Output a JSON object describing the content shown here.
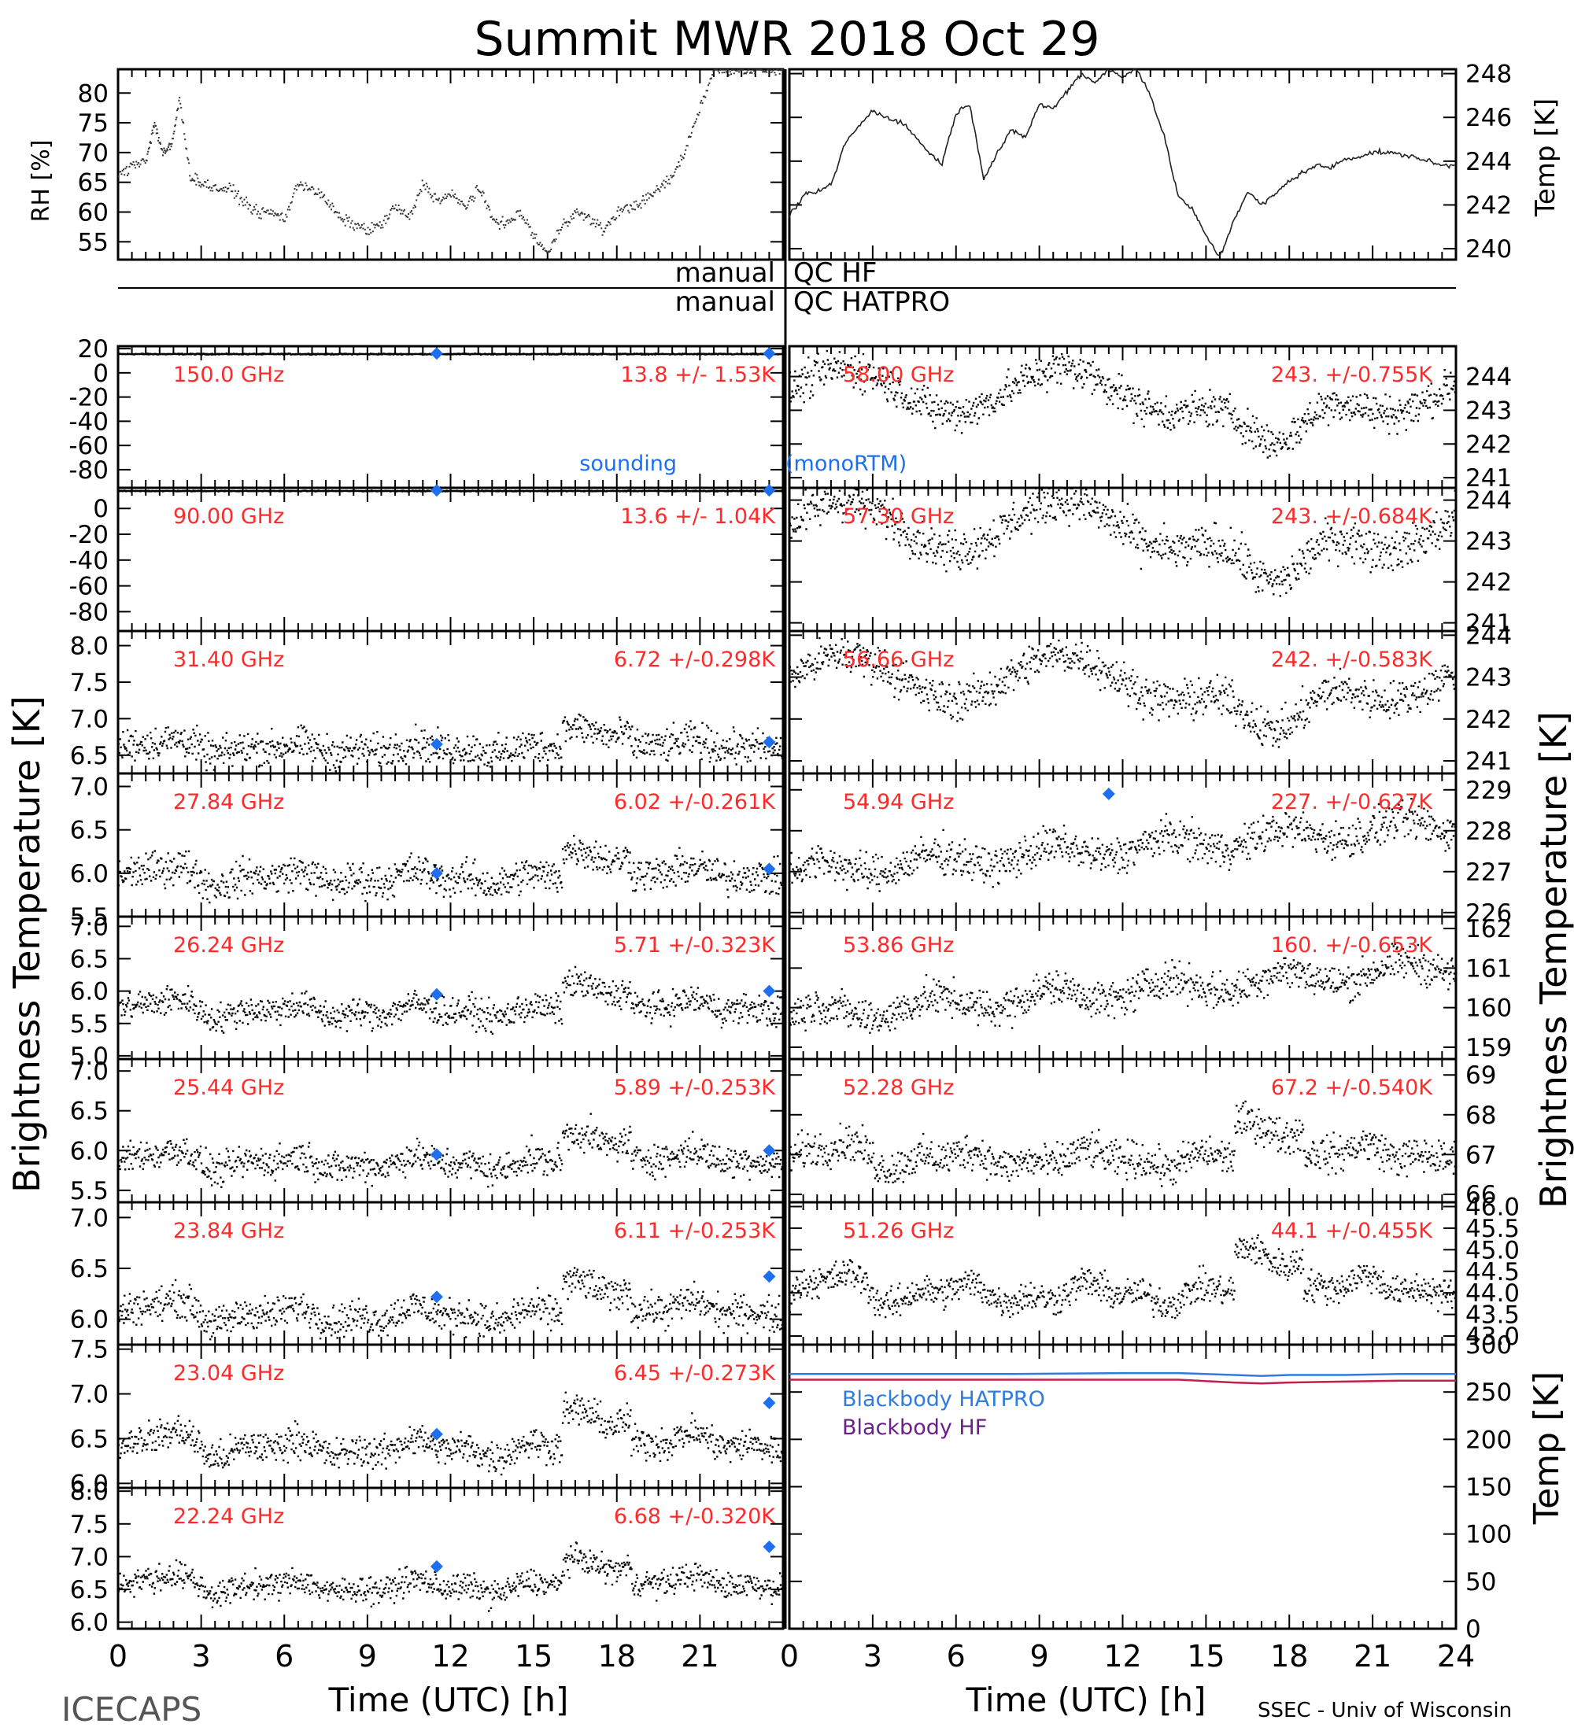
{
  "title": "Summit MWR 2018 Oct 29",
  "footer": {
    "left": "ICECAPS",
    "right": "SSEC - Univ of Wisconsin"
  },
  "axis_labels": {
    "left_brightness": "Brightness Temperature [K]",
    "right_brightness": "Brightness Temperature [K]",
    "rh": "RH [%]",
    "temp_top": "Temp [K]",
    "temp_bottom": "Temp [K]",
    "xlabel_left": "Time (UTC) [h]",
    "xlabel_right": "Time (UTC) [h]"
  },
  "qc": {
    "row1_left": "manual",
    "row1_right": "QC HF",
    "row2_left": "manual",
    "row2_right": "QC HATPRO"
  },
  "legend": {
    "sounding_left": "sounding",
    "sounding_right": "(monoRTM)",
    "bb_hatpro": "Blackbody HATPRO",
    "bb_hf": "Blackbody HF"
  },
  "colors": {
    "data": "#000000",
    "label": "#ff2a2a",
    "sounding": "#1e6ff0",
    "bb_hatpro": "#2f7be0",
    "bb_hf": "#6a1f8a",
    "bb_hf_line": "#c02050"
  },
  "chart_data": [
    {
      "id": "rh",
      "type": "scatter",
      "ylabel": "RH [%]",
      "xlim": [
        0,
        24
      ],
      "ylim": [
        52,
        84
      ],
      "yticks": [
        55,
        60,
        65,
        70,
        75,
        80
      ],
      "x": [
        0,
        0.5,
        1,
        1.3,
        1.6,
        1.9,
        2.2,
        2.6,
        3,
        3.5,
        4,
        4.5,
        5,
        5.5,
        6,
        6.5,
        7,
        7.5,
        8,
        8.5,
        9,
        9.5,
        10,
        10.5,
        11,
        11.5,
        12,
        12.5,
        13,
        13.5,
        14,
        14.5,
        15,
        15.5,
        16,
        16.5,
        17,
        17.5,
        18,
        18.5,
        19,
        19.5,
        20,
        20.5,
        21,
        21.5,
        22,
        22.5,
        23,
        23.5,
        24
      ],
      "y": [
        66,
        68,
        69,
        75,
        70,
        71,
        79,
        66,
        65,
        64,
        64,
        62,
        60,
        60,
        59,
        65,
        64,
        62,
        59,
        58,
        57,
        58,
        61,
        59,
        65,
        62,
        63,
        61,
        64,
        59,
        58,
        60,
        56,
        53,
        58,
        60,
        59,
        57,
        60,
        61,
        62,
        64,
        66,
        71,
        78,
        84,
        84,
        84,
        84,
        84,
        84
      ]
    },
    {
      "id": "temp",
      "type": "line",
      "ylabel": "Temp [K]",
      "xlim": [
        0,
        24
      ],
      "ylim": [
        239.5,
        248.2
      ],
      "yticks": [
        240,
        242,
        244,
        246,
        248
      ],
      "x": [
        0,
        0.5,
        1,
        1.5,
        2,
        2.5,
        3,
        3.5,
        4,
        4.5,
        5,
        5.5,
        6,
        6.5,
        7,
        7.5,
        8,
        8.5,
        9,
        9.5,
        10,
        10.5,
        11,
        11.5,
        12,
        12.5,
        13,
        13.5,
        14,
        14.5,
        15,
        15.5,
        16,
        16.5,
        17,
        17.5,
        18,
        18.5,
        19,
        19.5,
        20,
        20.5,
        21,
        21.5,
        22,
        22.5,
        23,
        23.5,
        24
      ],
      "y": [
        241.5,
        242.4,
        242.6,
        242.9,
        244.8,
        245.6,
        246.3,
        246.0,
        245.8,
        245.2,
        244.4,
        243.9,
        246.2,
        246.6,
        243.2,
        244.4,
        245.4,
        245.1,
        246.6,
        246.4,
        247.2,
        248.0,
        247.6,
        248.2,
        247.8,
        248.3,
        247.0,
        245.1,
        242.4,
        241.8,
        240.6,
        239.6,
        241.3,
        242.6,
        242.0,
        242.5,
        243.1,
        243.5,
        243.8,
        243.7,
        244.1,
        244.2,
        244.4,
        244.4,
        244.3,
        244.2,
        244.0,
        243.8,
        243.8
      ]
    },
    {
      "id": "150",
      "type": "scatter",
      "label": "150.0 GHz",
      "stats": "13.8 +/- 1.53K",
      "ylim": [
        -95,
        22
      ],
      "yticks": [
        20,
        0,
        -20,
        -40,
        -60,
        -80
      ],
      "mean": 16,
      "noise": 1.5,
      "sounding": [
        [
          11.5,
          16
        ],
        [
          23.5,
          16
        ]
      ]
    },
    {
      "id": "90",
      "type": "scatter",
      "label": "90.00 GHz",
      "stats": "13.6 +/- 1.04K",
      "ylim": [
        -95,
        16
      ],
      "yticks": [
        0,
        -20,
        -40,
        -60,
        -80
      ],
      "mean": 14,
      "noise": 1.0,
      "sounding": [
        [
          11.5,
          14
        ],
        [
          23.5,
          14
        ]
      ]
    },
    {
      "id": "31.40",
      "type": "scatter",
      "label": "31.40 GHz",
      "stats": "6.72 +/-0.298K",
      "ylim": [
        6.25,
        8.2
      ],
      "yticks": [
        6.5,
        7.0,
        7.5,
        8.0
      ],
      "profile": "kband",
      "base": 6.6,
      "amp": 0.3,
      "noise": 0.25,
      "sounding": [
        [
          11.5,
          6.65
        ],
        [
          23.5,
          6.68
        ]
      ]
    },
    {
      "id": "27.84",
      "type": "scatter",
      "label": "27.84 GHz",
      "stats": "6.02 +/-0.261K",
      "ylim": [
        5.5,
        7.15
      ],
      "yticks": [
        5.5,
        6.0,
        6.5,
        7.0
      ],
      "profile": "kband",
      "base": 5.95,
      "amp": 0.35,
      "noise": 0.22,
      "sounding": [
        [
          11.5,
          6.0
        ],
        [
          23.5,
          6.05
        ]
      ]
    },
    {
      "id": "26.24",
      "type": "scatter",
      "label": "26.24 GHz",
      "stats": "5.71 +/-0.323K",
      "ylim": [
        4.95,
        7.15
      ],
      "yticks": [
        5.0,
        5.5,
        6.0,
        6.5,
        7.0
      ],
      "profile": "kband",
      "base": 5.7,
      "amp": 0.45,
      "noise": 0.25,
      "sounding": [
        [
          11.5,
          5.95
        ],
        [
          23.5,
          6.0
        ]
      ]
    },
    {
      "id": "25.44",
      "type": "scatter",
      "label": "25.44 GHz",
      "stats": "5.89 +/-0.253K",
      "ylim": [
        5.35,
        7.15
      ],
      "yticks": [
        5.5,
        6.0,
        6.5,
        7.0
      ],
      "profile": "kband",
      "base": 5.85,
      "amp": 0.4,
      "noise": 0.22,
      "sounding": [
        [
          11.5,
          5.95
        ],
        [
          23.5,
          6.0
        ]
      ]
    },
    {
      "id": "23.84",
      "type": "scatter",
      "label": "23.84 GHz",
      "stats": "6.11 +/-0.253K",
      "ylim": [
        5.75,
        7.15
      ],
      "yticks": [
        6.0,
        6.5,
        7.0
      ],
      "profile": "kband",
      "base": 6.05,
      "amp": 0.35,
      "noise": 0.18,
      "sounding": [
        [
          11.5,
          6.22
        ],
        [
          23.5,
          6.42
        ]
      ]
    },
    {
      "id": "23.04",
      "type": "scatter",
      "label": "23.04 GHz",
      "stats": "6.45 +/-0.273K",
      "ylim": [
        5.95,
        7.55
      ],
      "yticks": [
        6.0,
        6.5,
        7.0,
        7.5
      ],
      "profile": "kband",
      "base": 6.4,
      "amp": 0.45,
      "noise": 0.2,
      "sounding": [
        [
          11.5,
          6.55
        ],
        [
          23.5,
          6.9
        ]
      ]
    },
    {
      "id": "22.24",
      "type": "scatter",
      "label": "22.24 GHz",
      "stats": "6.68 +/-0.320K",
      "ylim": [
        5.9,
        8.05
      ],
      "yticks": [
        6.0,
        6.5,
        7.0,
        7.5,
        8.0
      ],
      "profile": "kband",
      "base": 6.55,
      "amp": 0.45,
      "noise": 0.22,
      "sounding": [
        [
          11.5,
          6.85
        ],
        [
          23.5,
          7.15
        ]
      ]
    },
    {
      "id": "58.00",
      "type": "scatter",
      "label": "58.00 GHz",
      "stats": "243. +/-0.755K",
      "ylim": [
        240.7,
        244.9
      ],
      "yticks": [
        241,
        242,
        243,
        244
      ],
      "profile": "vband",
      "base": 243.6,
      "amp": 2.2,
      "noise": 0.6,
      "sounding": []
    },
    {
      "id": "57.30",
      "type": "scatter",
      "label": "57.30 GHz",
      "stats": "243. +/-0.684K",
      "ylim": [
        240.8,
        244.3
      ],
      "yticks": [
        241,
        242,
        243,
        244
      ],
      "profile": "vband",
      "base": 243.4,
      "amp": 2.0,
      "noise": 0.55,
      "sounding": []
    },
    {
      "id": "56.66",
      "type": "scatter",
      "label": "56.66 GHz",
      "stats": "242. +/-0.583K",
      "ylim": [
        240.7,
        244.1
      ],
      "yticks": [
        241,
        242,
        243,
        244
      ],
      "profile": "vband",
      "base": 243.0,
      "amp": 1.8,
      "noise": 0.5,
      "sounding": []
    },
    {
      "id": "54.94",
      "type": "scatter",
      "label": "54.94 GHz",
      "stats": "227. +/-0.627K",
      "ylim": [
        225.9,
        229.4
      ],
      "yticks": [
        226,
        227,
        228,
        229
      ],
      "profile": "rising",
      "base": 227.0,
      "amp": 1.3,
      "noise": 0.5,
      "sounding": [
        [
          11.5,
          228.9
        ]
      ]
    },
    {
      "id": "53.86",
      "type": "scatter",
      "label": "53.86 GHz",
      "stats": "160. +/-0.653K",
      "ylim": [
        158.7,
        162.3
      ],
      "yticks": [
        159,
        160,
        161,
        162
      ],
      "profile": "rising",
      "base": 159.8,
      "amp": 1.4,
      "noise": 0.5,
      "sounding": []
    },
    {
      "id": "52.28",
      "type": "scatter",
      "label": "52.28 GHz",
      "stats": "67.2 +/-0.540K",
      "ylim": [
        65.8,
        69.4
      ],
      "yticks": [
        66,
        67,
        68,
        69
      ],
      "profile": "kband",
      "base": 66.9,
      "amp": 1.0,
      "noise": 0.5,
      "sounding": []
    },
    {
      "id": "51.26",
      "type": "scatter",
      "label": "51.26 GHz",
      "stats": "44.1 +/-0.455K",
      "ylim": [
        42.8,
        46.1
      ],
      "yticks": [
        43.0,
        43.5,
        44.0,
        44.5,
        45.0,
        45.5,
        46.0
      ],
      "profile": "kband",
      "base": 44.0,
      "amp": 1.1,
      "noise": 0.4,
      "sounding": []
    },
    {
      "id": "blackbody",
      "type": "line",
      "ylabel": "Temp [K]",
      "ylim": [
        0,
        300
      ],
      "yticks": [
        0,
        50,
        100,
        150,
        200,
        250,
        300
      ],
      "series": [
        {
          "name": "Blackbody HATPRO",
          "x": [
            0,
            4,
            8,
            12,
            14,
            16,
            17,
            18,
            20,
            22,
            24
          ],
          "y": [
            269,
            269,
            269,
            270,
            270,
            268,
            267,
            268,
            268,
            269,
            269
          ]
        },
        {
          "name": "Blackbody HF",
          "x": [
            0,
            4,
            8,
            12,
            14,
            16,
            17,
            18,
            20,
            22,
            24
          ],
          "y": [
            263,
            263,
            263,
            263,
            263,
            260,
            259,
            260,
            261,
            262,
            262
          ]
        }
      ]
    }
  ]
}
